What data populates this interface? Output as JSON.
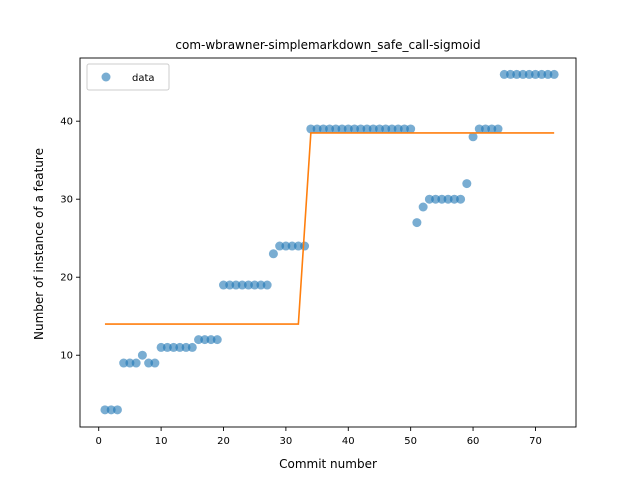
{
  "chart_data": {
    "type": "scatter",
    "title": "com-wbrawner-simplemarkdown_safe_call-sigmoid",
    "xlabel": "Commit number",
    "ylabel": "Number of instance of a feature",
    "xlim": [
      -3,
      76.5
    ],
    "ylim": [
      0.8,
      48.1
    ],
    "xticks": [
      0,
      10,
      20,
      30,
      40,
      50,
      60,
      70
    ],
    "yticks": [
      10,
      20,
      30,
      40
    ],
    "legend": {
      "position": "top-left",
      "entries": [
        "data"
      ]
    },
    "grid": false,
    "series": [
      {
        "name": "data",
        "style": "markers",
        "color": "#1f77b4",
        "x": [
          1,
          2,
          3,
          4,
          5,
          6,
          7,
          8,
          9,
          10,
          11,
          12,
          13,
          14,
          15,
          16,
          17,
          18,
          19,
          20,
          21,
          22,
          23,
          24,
          25,
          26,
          27,
          28,
          29,
          30,
          31,
          32,
          33,
          34,
          35,
          36,
          37,
          38,
          39,
          40,
          41,
          42,
          43,
          44,
          45,
          46,
          47,
          48,
          49,
          50,
          51,
          52,
          53,
          54,
          55,
          56,
          57,
          58,
          59,
          60,
          61,
          62,
          63,
          64,
          65,
          66,
          67,
          68,
          69,
          70,
          71,
          72,
          73
        ],
        "y": [
          3,
          3,
          3,
          9,
          9,
          9,
          10,
          9,
          9,
          11,
          11,
          11,
          11,
          11,
          11,
          12,
          12,
          12,
          12,
          19,
          19,
          19,
          19,
          19,
          19,
          19,
          19,
          23,
          24,
          24,
          24,
          24,
          24,
          39,
          39,
          39,
          39,
          39,
          39,
          39,
          39,
          39,
          39,
          39,
          39,
          39,
          39,
          39,
          39,
          39,
          27,
          29,
          30,
          30,
          30,
          30,
          30,
          30,
          32,
          38,
          39,
          39,
          39,
          39,
          46,
          46,
          46,
          46,
          46,
          46,
          46,
          46,
          46
        ]
      },
      {
        "style": "line",
        "color": "#ff7f0e",
        "x": [
          1,
          32,
          34,
          73
        ],
        "y": [
          14.0,
          14.0,
          38.5,
          38.5
        ]
      }
    ]
  }
}
